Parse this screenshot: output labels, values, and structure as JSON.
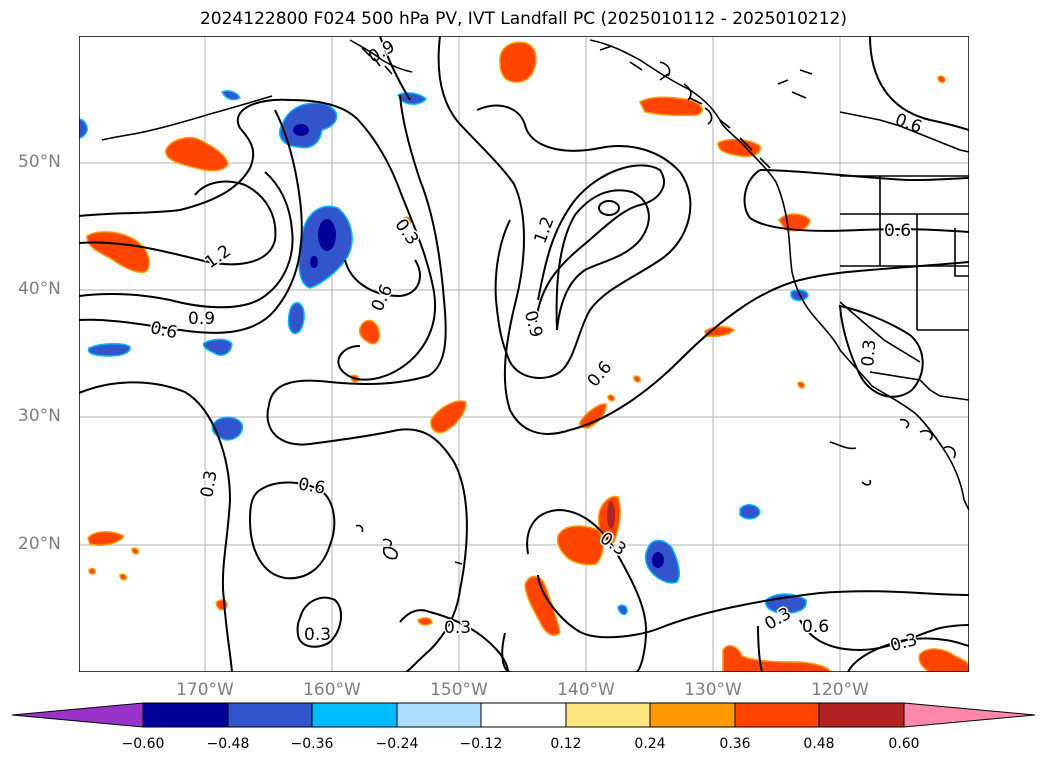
{
  "title": "2024122800 F024 500 hPa PV, IVT Landfall PC (2025010112 - 2025010212)",
  "lat_labels": [
    "50°N",
    "40°N",
    "30°N",
    "20°N"
  ],
  "lon_labels": [
    "170°W",
    "160°W",
    "150°W",
    "140°W",
    "130°W",
    "120°W"
  ],
  "contour_labels": [
    "0.9",
    "1.2",
    "0.9",
    "0.6",
    "0.3",
    "0.6",
    "1.2",
    "0.9",
    "0.6",
    "0.6",
    "0.6",
    "0.3",
    "0.6",
    "0.3",
    "0.3",
    "0.3",
    "0.3",
    "0.3",
    "0.6",
    "0.3"
  ],
  "colorbar": {
    "tick_labels": [
      "−0.60",
      "−0.48",
      "−0.36",
      "−0.24",
      "−0.12",
      "0.12",
      "0.24",
      "0.36",
      "0.48",
      "0.60"
    ],
    "colors": [
      "#9933cc",
      "#000099",
      "#3355cc",
      "#00bbff",
      "#aaddff",
      "#ffffff",
      "#ffe680",
      "#ff9900",
      "#ff4400",
      "#b22222",
      "#ff88aa"
    ]
  },
  "map_colors": {
    "positive_fill": "#ff4400",
    "positive_edge": "#ff9900",
    "positive_halo": "#ffe680",
    "positive_core": "#b22222",
    "negative_fill": "#3355cc",
    "negative_edge": "#00bbff",
    "negative_halo": "#aaddff",
    "negative_core": "#000099",
    "contour": "#000000",
    "grid": "#b0b0b0",
    "axis_labels": "#7f7f7f"
  }
}
